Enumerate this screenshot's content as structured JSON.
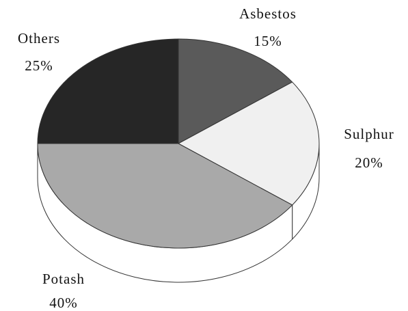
{
  "chart_data": {
    "type": "pie",
    "categories": [
      "Asbestos",
      "Sulphur",
      "Potash",
      "Others"
    ],
    "values": [
      15,
      20,
      40,
      25
    ],
    "value_labels": [
      "15%",
      "20%",
      "40%",
      "25%"
    ],
    "colors": [
      "#5a5a5a",
      "#f0f0f0",
      "#a9a9a9",
      "#262626"
    ]
  }
}
